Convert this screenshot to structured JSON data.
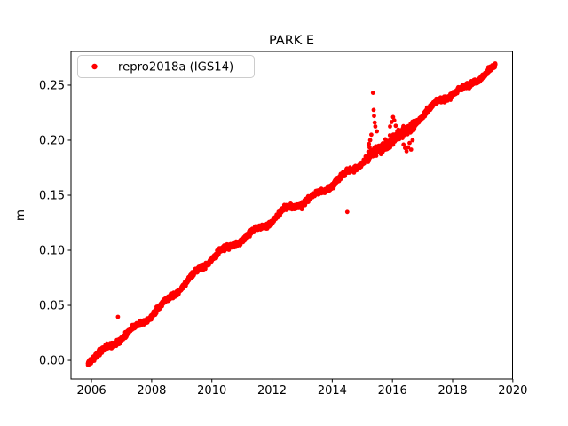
{
  "figure": {
    "background": "#ffffff"
  },
  "chart_data": {
    "type": "scatter",
    "title": "PARK E",
    "xlabel": "",
    "ylabel": "m",
    "grid": false,
    "legend": {
      "location": "upper left",
      "label": "repro2018a (IGS14)",
      "marker": "red-dot"
    },
    "marker": {
      "style": "dot",
      "color": "#ff0000",
      "radius_px": 2.4
    },
    "xlim": [
      2005.32,
      2019.99
    ],
    "ylim": [
      -0.0169,
      0.2806
    ],
    "xticks": [
      {
        "value": 2006,
        "label": "2006"
      },
      {
        "value": 2008,
        "label": "2008"
      },
      {
        "value": 2010,
        "label": "2010"
      },
      {
        "value": 2012,
        "label": "2012"
      },
      {
        "value": 2014,
        "label": "2014"
      },
      {
        "value": 2016,
        "label": "2016"
      },
      {
        "value": 2018,
        "label": "2018"
      },
      {
        "value": 2020,
        "label": "2020"
      }
    ],
    "yticks": [
      {
        "value": 0.0,
        "label": "0.00"
      },
      {
        "value": 0.05,
        "label": "0.05"
      },
      {
        "value": 0.1,
        "label": "0.10"
      },
      {
        "value": 0.15,
        "label": "0.15"
      },
      {
        "value": 0.2,
        "label": "0.20"
      },
      {
        "value": 0.25,
        "label": "0.25"
      }
    ],
    "series": {
      "name": "repro2018a (IGS14)",
      "description": "Daily GPS east-position time series rising nearly linearly from 0.000 m in early 2006 to about 0.266 m in mid 2019 (~2 cm/yr), with small seasonal wiggles, a noisy segment during 2015-2016.7 and a few isolated outliers.",
      "t_start": 2005.88,
      "t_end": 2019.42,
      "n_points": 3300,
      "trend_anchors": [
        [
          2005.88,
          -0.0015
        ],
        [
          2007.0,
          0.0205
        ],
        [
          2008.0,
          0.041
        ],
        [
          2009.0,
          0.067
        ],
        [
          2010.0,
          0.0935
        ],
        [
          2011.0,
          0.11
        ],
        [
          2012.0,
          0.127
        ],
        [
          2012.45,
          0.1375
        ],
        [
          2013.0,
          0.143
        ],
        [
          2013.5,
          0.1505
        ],
        [
          2014.0,
          0.16
        ],
        [
          2015.0,
          0.18
        ],
        [
          2015.5,
          0.19
        ],
        [
          2016.0,
          0.201
        ],
        [
          2016.5,
          0.208
        ],
        [
          2017.0,
          0.2235
        ],
        [
          2017.5,
          0.234
        ],
        [
          2018.0,
          0.2435
        ],
        [
          2018.5,
          0.248
        ],
        [
          2019.0,
          0.259
        ],
        [
          2019.42,
          0.2665
        ]
      ],
      "seasonal": {
        "amplitude_m": 0.0018,
        "period_years": 1.0,
        "phase_years": 0.15
      },
      "noise_sigma_m": 0.0011,
      "noisy_regions": [
        {
          "from": 2015.15,
          "to": 2016.75,
          "sigma_m": 0.002
        }
      ],
      "outliers": [
        [
          2006.88,
          0.0395
        ],
        [
          2014.5,
          0.1348
        ],
        [
          2015.355,
          0.243
        ],
        [
          2015.375,
          0.2275
        ],
        [
          2015.39,
          0.222
        ],
        [
          2015.41,
          0.216
        ],
        [
          2015.43,
          0.2125
        ],
        [
          2015.3,
          0.205
        ],
        [
          2015.26,
          0.2
        ],
        [
          2015.22,
          0.1965
        ],
        [
          2015.24,
          0.1935
        ],
        [
          2015.48,
          0.208
        ],
        [
          2015.55,
          0.195
        ],
        [
          2015.62,
          0.1905
        ],
        [
          2015.68,
          0.1895
        ],
        [
          2015.92,
          0.2125
        ],
        [
          2015.97,
          0.2165
        ],
        [
          2016.02,
          0.221
        ],
        [
          2016.06,
          0.218
        ],
        [
          2016.11,
          0.213
        ],
        [
          2016.16,
          0.208
        ],
        [
          2016.37,
          0.196
        ],
        [
          2016.42,
          0.193
        ],
        [
          2016.47,
          0.19
        ],
        [
          2016.52,
          0.1935
        ],
        [
          2016.57,
          0.1975
        ],
        [
          2016.62,
          0.1915
        ],
        [
          2016.67,
          0.2
        ]
      ]
    }
  }
}
